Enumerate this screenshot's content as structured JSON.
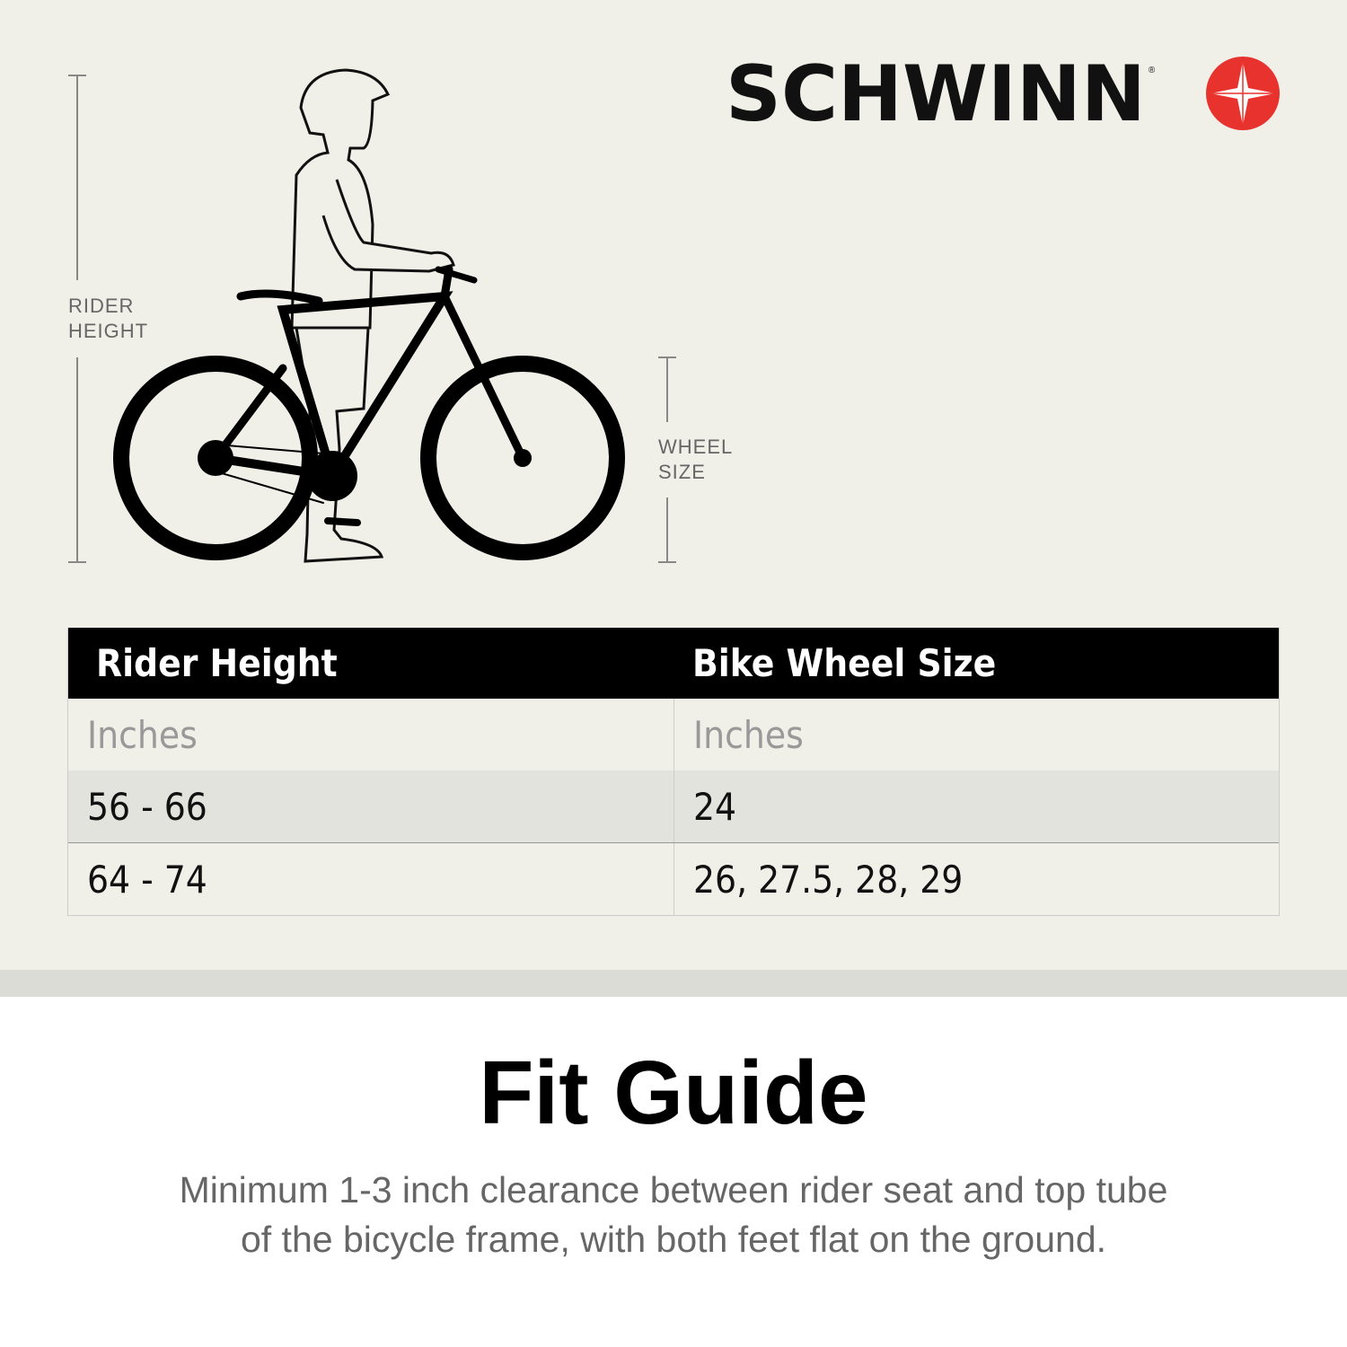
{
  "brand": {
    "name": "SCHWINN",
    "logo_color": "#e8322d"
  },
  "diagram": {
    "rider_height_label": [
      "RIDER",
      "HEIGHT"
    ],
    "wheel_size_label": [
      "WHEEL",
      "SIZE"
    ]
  },
  "table": {
    "headers": [
      "Rider Height",
      "Bike Wheel Size"
    ],
    "units": [
      "Inches",
      "Inches"
    ],
    "rows": [
      [
        "56 - 66",
        "24"
      ],
      [
        "64 - 74",
        "26, 27.5, 28, 29"
      ]
    ]
  },
  "footer": {
    "title": "Fit Guide",
    "description_lines": [
      "Minimum 1-3 inch clearance between rider seat and top tube",
      "of the bicycle frame, with both feet flat on the ground."
    ]
  }
}
